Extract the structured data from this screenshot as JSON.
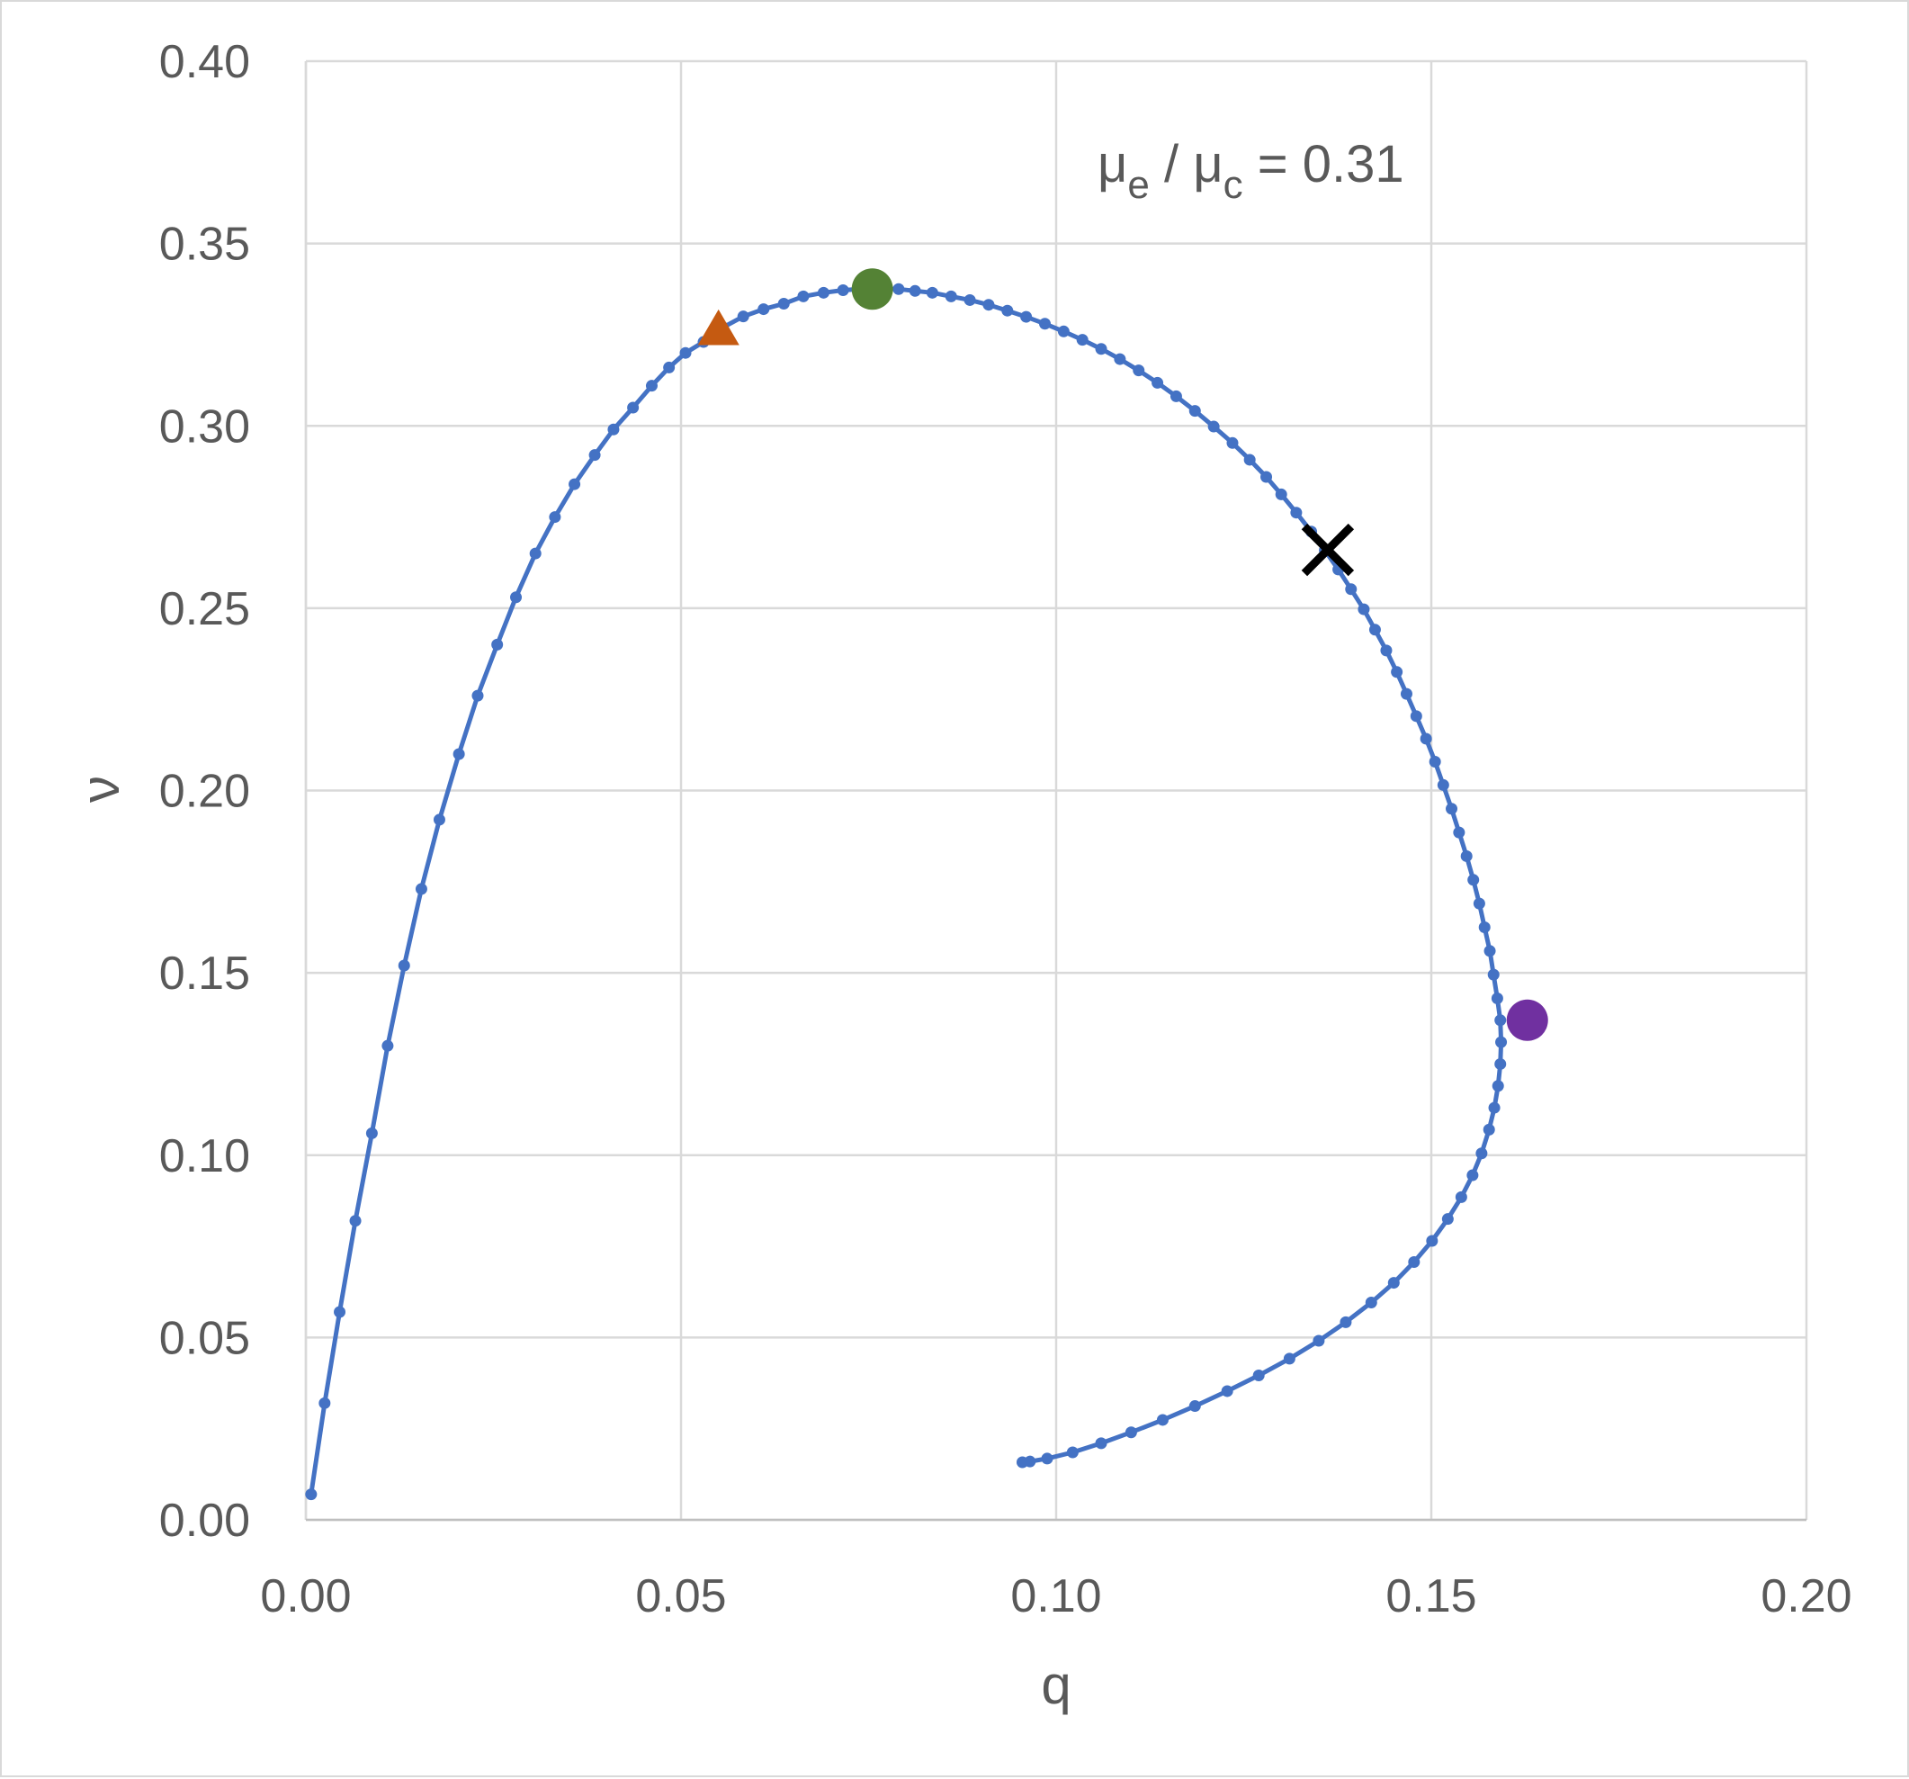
{
  "chart_data": {
    "type": "line",
    "xlabel": "q",
    "ylabel": "ν",
    "xlim": [
      0.0,
      0.2
    ],
    "ylim": [
      0.0,
      0.4
    ],
    "x_ticks": [
      "0.00",
      "0.05",
      "0.10",
      "0.15",
      "0.20"
    ],
    "y_ticks": [
      "0.00",
      "0.05",
      "0.10",
      "0.15",
      "0.20",
      "0.25",
      "0.30",
      "0.35",
      "0.40"
    ],
    "grid": true,
    "annotation": {
      "main": "μ",
      "sub1": "e",
      "mid": " / μ",
      "sub2": "c",
      "tail": " = 0.31"
    },
    "series": [
      {
        "color": "#4472c4",
        "markers": "small-circle",
        "points": [
          [
            0.0007,
            0.007
          ],
          [
            0.0025,
            0.032
          ],
          [
            0.0045,
            0.057
          ],
          [
            0.0066,
            0.082
          ],
          [
            0.0088,
            0.106
          ],
          [
            0.0109,
            0.13
          ],
          [
            0.0131,
            0.152
          ],
          [
            0.0154,
            0.173
          ],
          [
            0.0178,
            0.192
          ],
          [
            0.0204,
            0.21
          ],
          [
            0.0229,
            0.226
          ],
          [
            0.0255,
            0.24
          ],
          [
            0.028,
            0.253
          ],
          [
            0.0306,
            0.265
          ],
          [
            0.0332,
            0.275
          ],
          [
            0.0358,
            0.284
          ],
          [
            0.0385,
            0.292
          ],
          [
            0.041,
            0.299
          ],
          [
            0.0436,
            0.305
          ],
          [
            0.0461,
            0.311
          ],
          [
            0.0484,
            0.316
          ],
          [
            0.0506,
            0.32
          ],
          [
            0.053,
            0.323
          ],
          [
            0.0556,
            0.327
          ],
          [
            0.0583,
            0.33
          ],
          [
            0.061,
            0.332
          ],
          [
            0.0637,
            0.3335
          ],
          [
            0.0663,
            0.3355
          ],
          [
            0.069,
            0.3365
          ],
          [
            0.0716,
            0.3372
          ],
          [
            0.0745,
            0.3376
          ],
          [
            0.077,
            0.3376
          ],
          [
            0.079,
            0.3375
          ],
          [
            0.0812,
            0.337
          ],
          [
            0.0835,
            0.3365
          ],
          [
            0.086,
            0.3355
          ],
          [
            0.0885,
            0.3345
          ],
          [
            0.091,
            0.3332
          ],
          [
            0.0935,
            0.3316
          ],
          [
            0.096,
            0.3299
          ],
          [
            0.0985,
            0.328
          ],
          [
            0.101,
            0.3259
          ],
          [
            0.1035,
            0.3236
          ],
          [
            0.106,
            0.3211
          ],
          [
            0.1085,
            0.3183
          ],
          [
            0.111,
            0.3152
          ],
          [
            0.1135,
            0.3118
          ],
          [
            0.116,
            0.3081
          ],
          [
            0.1185,
            0.3041
          ],
          [
            0.121,
            0.2998
          ],
          [
            0.1235,
            0.2953
          ],
          [
            0.1258,
            0.2907
          ],
          [
            0.128,
            0.286
          ],
          [
            0.13,
            0.2812
          ],
          [
            0.132,
            0.2762
          ],
          [
            0.134,
            0.271
          ],
          [
            0.1358,
            0.2659
          ],
          [
            0.1376,
            0.2606
          ],
          [
            0.1393,
            0.2552
          ],
          [
            0.141,
            0.2497
          ],
          [
            0.1425,
            0.2441
          ],
          [
            0.144,
            0.2384
          ],
          [
            0.1454,
            0.2325
          ],
          [
            0.1467,
            0.2265
          ],
          [
            0.148,
            0.2204
          ],
          [
            0.1493,
            0.2142
          ],
          [
            0.1505,
            0.2079
          ],
          [
            0.1516,
            0.2015
          ],
          [
            0.1527,
            0.195
          ],
          [
            0.1537,
            0.1885
          ],
          [
            0.1547,
            0.182
          ],
          [
            0.1556,
            0.1755
          ],
          [
            0.1564,
            0.169
          ],
          [
            0.1571,
            0.1625
          ],
          [
            0.1578,
            0.156
          ],
          [
            0.1583,
            0.1495
          ],
          [
            0.1588,
            0.143
          ],
          [
            0.1592,
            0.137
          ],
          [
            0.1593,
            0.131
          ],
          [
            0.1592,
            0.125
          ],
          [
            0.1589,
            0.119
          ],
          [
            0.1584,
            0.113
          ],
          [
            0.1577,
            0.107
          ],
          [
            0.1567,
            0.1005
          ],
          [
            0.1555,
            0.0945
          ],
          [
            0.154,
            0.0885
          ],
          [
            0.1522,
            0.0825
          ],
          [
            0.1501,
            0.0765
          ],
          [
            0.1477,
            0.0707
          ],
          [
            0.145,
            0.065
          ],
          [
            0.142,
            0.0596
          ],
          [
            0.1386,
            0.0542
          ],
          [
            0.135,
            0.0491
          ],
          [
            0.1311,
            0.0442
          ],
          [
            0.127,
            0.0396
          ],
          [
            0.1228,
            0.0353
          ],
          [
            0.1185,
            0.0312
          ],
          [
            0.1142,
            0.0274
          ],
          [
            0.11,
            0.024
          ],
          [
            0.106,
            0.021
          ],
          [
            0.1022,
            0.0185
          ],
          [
            0.0988,
            0.0168
          ],
          [
            0.0965,
            0.016
          ],
          [
            0.0955,
            0.0158
          ]
        ]
      }
    ],
    "special_points": [
      {
        "name": "triangle-marker",
        "shape": "triangle",
        "color": "#c55a11",
        "x": 0.055,
        "y": 0.3265
      },
      {
        "name": "green-marker",
        "shape": "circle",
        "color": "#548235",
        "x": 0.0755,
        "y": 0.3375
      },
      {
        "name": "cross-marker",
        "shape": "cross",
        "color": "#000000",
        "x": 0.1362,
        "y": 0.266
      },
      {
        "name": "purple-marker",
        "shape": "circle",
        "color": "#7030a0",
        "x": 0.1628,
        "y": 0.137
      }
    ]
  }
}
